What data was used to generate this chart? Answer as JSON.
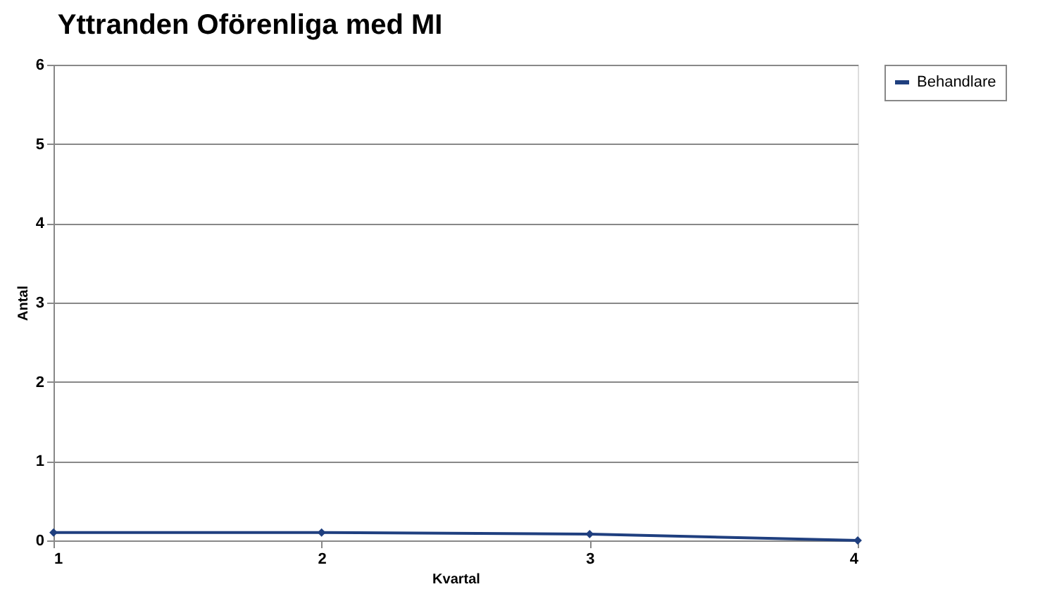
{
  "chart_data": {
    "type": "line",
    "title": "Yttranden Oförenliga med MI",
    "xlabel": "Kvartal",
    "ylabel": "Antal",
    "x": [
      1,
      2,
      3,
      4
    ],
    "series": [
      {
        "name": "Behandlare",
        "color": "#1f3f7f",
        "values": [
          0.1,
          0.1,
          0.08,
          0
        ]
      }
    ],
    "xlim": [
      1,
      4
    ],
    "xticks": [
      1,
      2,
      3,
      4
    ],
    "ylim": [
      0,
      6
    ],
    "yticks": [
      0,
      1,
      2,
      3,
      4,
      5,
      6
    ],
    "grid": "y",
    "legend": "right",
    "marker": "diamond",
    "line_style": "solid"
  }
}
